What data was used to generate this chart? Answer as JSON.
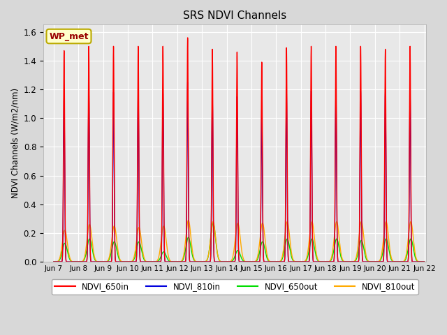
{
  "title": "SRS NDVI Channels",
  "ylabel": "NDVI Channels (W/m2/nm)",
  "xlim_days": [
    6.58,
    22.08
  ],
  "ylim": [
    0.0,
    1.65
  ],
  "yticks": [
    0.0,
    0.2,
    0.4,
    0.6,
    0.8,
    1.0,
    1.2,
    1.4,
    1.6
  ],
  "xtick_labels": [
    "Jun 7",
    "Jun 8",
    "Jun 9",
    "Jun 10",
    "Jun 11",
    "Jun 12",
    "Jun 13",
    "Jun 14",
    "Jun 15",
    "Jun 16",
    "Jun 17",
    "Jun 18",
    "Jun 19",
    "Jun 20",
    "Jun 21",
    "Jun 22"
  ],
  "xtick_positions": [
    7,
    8,
    9,
    10,
    11,
    12,
    13,
    14,
    15,
    16,
    17,
    18,
    19,
    20,
    21,
    22
  ],
  "colors": {
    "NDVI_650in": "#ff0000",
    "NDVI_810in": "#0000dd",
    "NDVI_650out": "#00dd00",
    "NDVI_810out": "#ffaa00"
  },
  "legend_label": "WP_met",
  "axes_bg": "#e8e8e8",
  "grid_color": "#ffffff",
  "peak_650in": [
    1.47,
    1.5,
    1.5,
    1.5,
    1.5,
    1.56,
    1.48,
    1.46,
    1.39,
    1.49,
    1.5,
    1.5,
    1.5,
    1.48,
    1.5
  ],
  "peak_810in": [
    1.15,
    1.19,
    1.18,
    1.19,
    1.18,
    1.25,
    1.16,
    1.15,
    1.08,
    1.18,
    1.19,
    1.19,
    1.19,
    1.18,
    1.19
  ],
  "peak_650out": [
    0.13,
    0.16,
    0.14,
    0.14,
    0.07,
    0.17,
    0.27,
    0.08,
    0.14,
    0.16,
    0.16,
    0.16,
    0.15,
    0.16,
    0.16
  ],
  "peak_810out": [
    0.22,
    0.26,
    0.25,
    0.24,
    0.25,
    0.29,
    0.28,
    0.27,
    0.27,
    0.28,
    0.28,
    0.28,
    0.28,
    0.28,
    0.28
  ],
  "day_start": 7,
  "n_days": 15
}
